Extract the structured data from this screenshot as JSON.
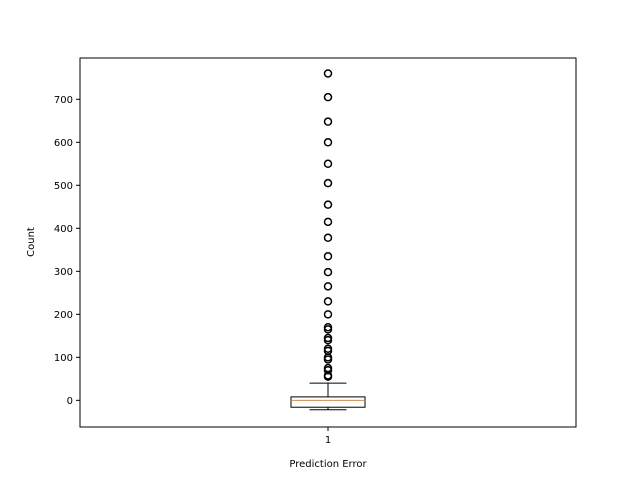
{
  "chart_data": {
    "type": "boxplot",
    "title": "",
    "xlabel": "Prediction Error",
    "ylabel": "Count",
    "categories": [
      "1"
    ],
    "ylim": [
      -62,
      796
    ],
    "yticks": [
      0,
      100,
      200,
      300,
      400,
      500,
      600,
      700
    ],
    "grid": false,
    "box": {
      "whisker_low": -22,
      "q1": -16,
      "median": 0,
      "q3": 8,
      "whisker_high": 40
    },
    "outliers": [
      55,
      58,
      70,
      75,
      95,
      100,
      115,
      120,
      140,
      145,
      165,
      170,
      200,
      230,
      265,
      298,
      335,
      378,
      415,
      455,
      505,
      550,
      600,
      648,
      705,
      760
    ],
    "colors": {
      "median": "#ff7f0e",
      "box": "#000000",
      "outlier": "#000000"
    }
  }
}
